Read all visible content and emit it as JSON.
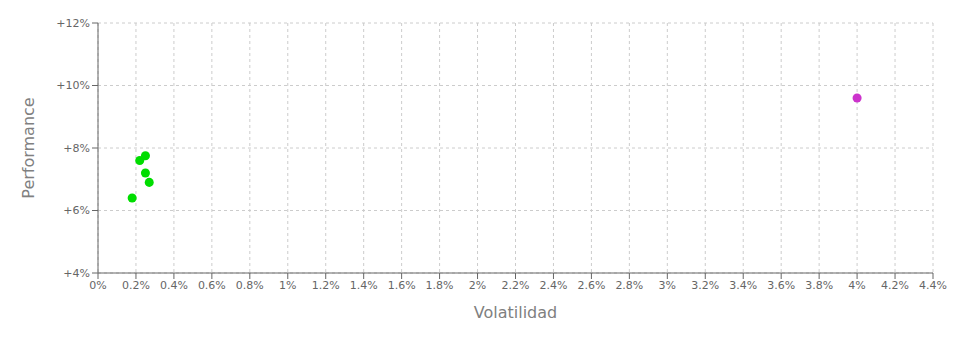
{
  "chart_data": {
    "type": "scatter",
    "xlabel": "Volatilidad",
    "ylabel": "Performance",
    "xlim": [
      0,
      0.044
    ],
    "ylim": [
      0.04,
      0.12
    ],
    "xticks": [
      {
        "value": 0,
        "label": "0%"
      },
      {
        "value": 0.002,
        "label": "0.2%"
      },
      {
        "value": 0.004,
        "label": "0.4%"
      },
      {
        "value": 0.006,
        "label": "0.6%"
      },
      {
        "value": 0.008,
        "label": "0.8%"
      },
      {
        "value": 0.01,
        "label": "1%"
      },
      {
        "value": 0.012,
        "label": "1.2%"
      },
      {
        "value": 0.014,
        "label": "1.4%"
      },
      {
        "value": 0.016,
        "label": "1.6%"
      },
      {
        "value": 0.018,
        "label": "1.8%"
      },
      {
        "value": 0.02,
        "label": "2%"
      },
      {
        "value": 0.022,
        "label": "2.2%"
      },
      {
        "value": 0.024,
        "label": "2.4%"
      },
      {
        "value": 0.026,
        "label": "2.6%"
      },
      {
        "value": 0.028,
        "label": "2.8%"
      },
      {
        "value": 0.03,
        "label": "3%"
      },
      {
        "value": 0.032,
        "label": "3.2%"
      },
      {
        "value": 0.034,
        "label": "3.4%"
      },
      {
        "value": 0.036,
        "label": "3.6%"
      },
      {
        "value": 0.038,
        "label": "3.8%"
      },
      {
        "value": 0.04,
        "label": "4%"
      },
      {
        "value": 0.042,
        "label": "4.2%"
      },
      {
        "value": 0.044,
        "label": "4.4%"
      }
    ],
    "yticks": [
      {
        "value": 0.04,
        "label": "+4%"
      },
      {
        "value": 0.06,
        "label": "+6%"
      },
      {
        "value": 0.08,
        "label": "+8%"
      },
      {
        "value": 0.1,
        "label": "+10%"
      },
      {
        "value": 0.12,
        "label": "+12%"
      }
    ],
    "grid": true,
    "series": [
      {
        "color": "#00dd00",
        "x": [
          0.0018,
          0.0022,
          0.0025,
          0.0025,
          0.0027
        ],
        "values": [
          0.064,
          0.076,
          0.0775,
          0.072,
          0.069
        ]
      },
      {
        "color": "#cc33cc",
        "x": [
          0.04
        ],
        "values": [
          0.096
        ]
      }
    ]
  }
}
